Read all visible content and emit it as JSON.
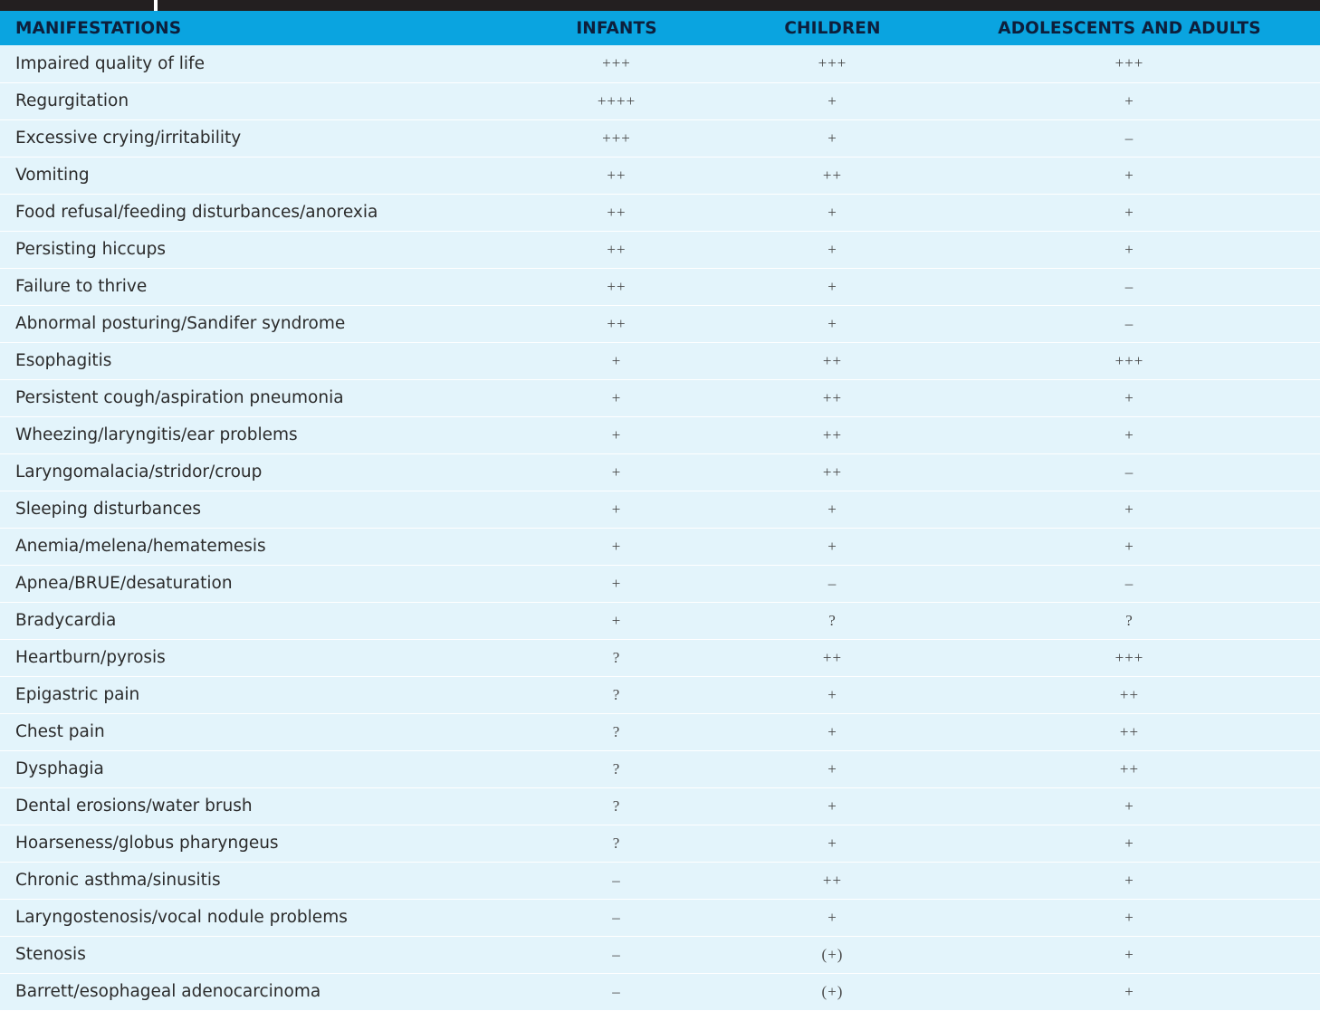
{
  "headers": {
    "manifestations": "MANIFESTATIONS",
    "infants": "INFANTS",
    "children": "CHILDREN",
    "adolescents_adults": "ADOLESCENTS AND ADULTS"
  },
  "rows": [
    {
      "manifestation": "Impaired quality of life",
      "infants": "+++",
      "children": "+++",
      "adolescents_adults": "+++"
    },
    {
      "manifestation": "Regurgitation",
      "infants": "++++",
      "children": "+",
      "adolescents_adults": "+"
    },
    {
      "manifestation": "Excessive crying/irritability",
      "infants": "+++",
      "children": "+",
      "adolescents_adults": "–"
    },
    {
      "manifestation": "Vomiting",
      "infants": "++",
      "children": "++",
      "adolescents_adults": "+"
    },
    {
      "manifestation": "Food refusal/feeding disturbances/anorexia",
      "infants": "++",
      "children": "+",
      "adolescents_adults": "+"
    },
    {
      "manifestation": "Persisting hiccups",
      "infants": "++",
      "children": "+",
      "adolescents_adults": "+"
    },
    {
      "manifestation": "Failure to thrive",
      "infants": "++",
      "children": "+",
      "adolescents_adults": "–"
    },
    {
      "manifestation": "Abnormal posturing/Sandifer syndrome",
      "infants": "++",
      "children": "+",
      "adolescents_adults": "–"
    },
    {
      "manifestation": "Esophagitis",
      "infants": "+",
      "children": "++",
      "adolescents_adults": "+++"
    },
    {
      "manifestation": "Persistent cough/aspiration pneumonia",
      "infants": "+",
      "children": "++",
      "adolescents_adults": "+"
    },
    {
      "manifestation": "Wheezing/laryngitis/ear problems",
      "infants": "+",
      "children": "++",
      "adolescents_adults": "+"
    },
    {
      "manifestation": "Laryngomalacia/stridor/croup",
      "infants": "+",
      "children": "++",
      "adolescents_adults": "–"
    },
    {
      "manifestation": "Sleeping disturbances",
      "infants": "+",
      "children": "+",
      "adolescents_adults": "+"
    },
    {
      "manifestation": "Anemia/melena/hematemesis",
      "infants": "+",
      "children": "+",
      "adolescents_adults": "+"
    },
    {
      "manifestation": "Apnea/BRUE/desaturation",
      "infants": "+",
      "children": "–",
      "adolescents_adults": "–"
    },
    {
      "manifestation": "Bradycardia",
      "infants": "+",
      "children": "?",
      "adolescents_adults": "?"
    },
    {
      "manifestation": "Heartburn/pyrosis",
      "infants": "?",
      "children": "++",
      "adolescents_adults": "+++"
    },
    {
      "manifestation": "Epigastric pain",
      "infants": "?",
      "children": "+",
      "adolescents_adults": "++"
    },
    {
      "manifestation": "Chest pain",
      "infants": "?",
      "children": "+",
      "adolescents_adults": "++"
    },
    {
      "manifestation": "Dysphagia",
      "infants": "?",
      "children": "+",
      "adolescents_adults": "++"
    },
    {
      "manifestation": "Dental erosions/water brush",
      "infants": "?",
      "children": "+",
      "adolescents_adults": "+"
    },
    {
      "manifestation": "Hoarseness/globus pharyngeus",
      "infants": "?",
      "children": "+",
      "adolescents_adults": "+"
    },
    {
      "manifestation": "Chronic asthma/sinusitis",
      "infants": "–",
      "children": "++",
      "adolescents_adults": "+"
    },
    {
      "manifestation": "Laryngostenosis/vocal nodule problems",
      "infants": "–",
      "children": "+",
      "adolescents_adults": "+"
    },
    {
      "manifestation": "Stenosis",
      "infants": "–",
      "children": "(+)",
      "adolescents_adults": "+"
    },
    {
      "manifestation": "Barrett/esophageal adenocarcinoma",
      "infants": "–",
      "children": "(+)",
      "adolescents_adults": "+"
    }
  ]
}
